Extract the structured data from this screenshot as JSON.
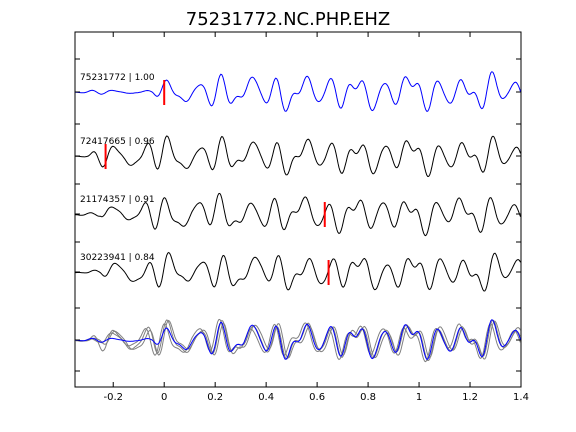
{
  "chart_data": {
    "type": "line",
    "title": "75231772.NC.PHP.EHZ",
    "xlabel": "",
    "ylabel": "",
    "xlim": [
      -0.35,
      1.4
    ],
    "x_ticks": [
      -0.2,
      0,
      0.2,
      0.4,
      0.6,
      0.8,
      1,
      1.2,
      1.4
    ],
    "x_tick_labels": [
      "-0.2",
      "0",
      "0.2",
      "0.4",
      "0.6",
      "0.8",
      "1",
      "1.2",
      "1.4"
    ],
    "grid": false,
    "legend": "none",
    "colors": {
      "master": "#0000ff",
      "trace": "#000000",
      "overlay": "#808080",
      "pick": "#ff0000",
      "axes": "#000000"
    },
    "traces": [
      {
        "id": "75231772",
        "cc": "1.00",
        "label": "75231772 | 1.00",
        "pick_time": 0.0,
        "color": "#0000ff"
      },
      {
        "id": "72417665",
        "cc": "0.96",
        "label": "72417665 | 0.96",
        "pick_time": -0.23,
        "color": "#000000"
      },
      {
        "id": "21174357",
        "cc": "0.91",
        "label": "21174357 | 0.91",
        "pick_time": 0.63,
        "color": "#000000"
      },
      {
        "id": "30223941",
        "cc": "0.84",
        "label": "30223941 | 0.84",
        "pick_time": 0.645,
        "color": "#000000"
      }
    ],
    "stack": {
      "description_label": "",
      "overlay_of": [
        "75231772",
        "72417665",
        "21174357",
        "30223941"
      ]
    }
  }
}
